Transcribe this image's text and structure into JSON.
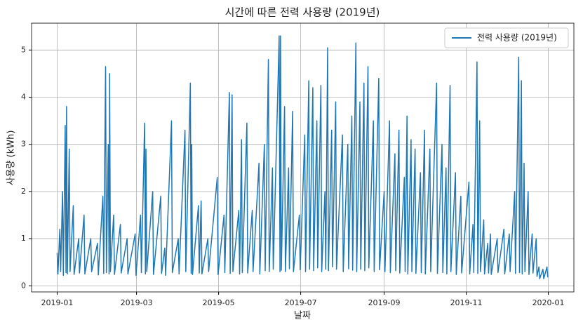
{
  "chart_data": {
    "type": "line",
    "title": "시간에 따른 전력 사용량 (2019년)",
    "x_label": "날짜",
    "y_label": "사용량 (kWh)",
    "x": [
      0,
      0.6,
      2,
      2.6,
      4,
      4.6,
      6,
      6.6,
      7,
      7.6,
      9,
      9.6,
      12,
      12.6,
      16,
      16.6,
      20,
      20.6,
      25,
      25.6,
      30,
      30.6,
      34,
      34.6,
      36,
      36.6,
      38,
      38.6,
      39,
      39.6,
      42,
      42.6,
      47,
      47.6,
      52,
      52.6,
      58,
      58.6,
      62,
      62.6,
      65,
      65.6,
      66,
      66.6,
      71,
      71.6,
      77,
      77.6,
      80,
      80.6,
      85,
      85.6,
      90,
      90.6,
      95,
      95.6,
      99,
      99.6,
      100,
      100.6,
      105,
      105.6,
      107,
      107.6,
      112,
      112.6,
      119,
      119.6,
      124,
      124.6,
      128,
      128.6,
      130,
      130.6,
      135,
      135.6,
      137,
      137.6,
      141,
      141.6,
      145,
      145.6,
      150,
      150.6,
      154,
      154.6,
      157,
      157.6,
      160,
      160.6,
      165,
      165.6,
      166,
      166.6,
      169,
      169.6,
      172,
      172.6,
      175,
      175.6,
      180,
      180.6,
      184,
      184.6,
      187,
      187.6,
      190,
      190.6,
      193,
      193.6,
      196,
      196.6,
      199,
      199.6,
      201,
      201.6,
      204,
      204.6,
      207,
      207.6,
      212,
      212.6,
      216,
      216.6,
      219,
      219.6,
      222,
      222.6,
      225,
      225.6,
      228,
      228.6,
      231,
      231.6,
      235,
      235.6,
      239,
      239.6,
      243,
      243.6,
      247,
      247.6,
      251,
      251.6,
      254,
      254.6,
      258,
      258.6,
      260,
      260.6,
      263,
      263.6,
      266,
      266.6,
      270,
      270.6,
      273,
      273.6,
      277,
      277.6,
      282,
      282.6,
      286,
      286.6,
      289,
      289.6,
      292,
      292.6,
      296,
      296.6,
      300,
      300.6,
      306,
      306.6,
      309,
      309.6,
      312,
      312.6,
      314,
      314.6,
      317,
      317.6,
      320,
      320.6,
      322,
      322.6,
      327,
      327.6,
      332,
      332.6,
      336,
      336.6,
      340,
      340.6,
      343,
      343.6,
      345,
      345.6,
      347,
      347.6,
      350,
      350.6,
      353,
      353.6,
      356,
      356.6,
      358,
      358.6,
      361,
      361.6,
      364,
      364.6
    ],
    "series": [
      {
        "name": "전력 사용량 (2019년)",
        "color": "#1f77b4",
        "values": [
          0.7,
          0.25,
          1.2,
          0.3,
          2.0,
          0.22,
          3.4,
          0.28,
          3.8,
          0.25,
          2.9,
          0.3,
          1.7,
          0.24,
          1.0,
          0.27,
          1.5,
          0.25,
          1.0,
          0.3,
          0.9,
          0.23,
          1.9,
          0.26,
          4.65,
          0.28,
          3.0,
          0.25,
          4.5,
          0.3,
          1.5,
          0.24,
          1.3,
          0.27,
          1.0,
          0.25,
          1.1,
          0.22,
          1.5,
          0.28,
          3.45,
          0.25,
          2.9,
          0.3,
          2.0,
          0.24,
          1.9,
          0.26,
          0.8,
          0.22,
          3.5,
          0.28,
          1.0,
          0.25,
          3.3,
          0.3,
          4.3,
          0.26,
          3.0,
          0.24,
          1.7,
          0.27,
          1.8,
          0.25,
          1.0,
          0.3,
          2.3,
          0.24,
          1.5,
          0.28,
          4.1,
          0.26,
          4.05,
          0.3,
          1.6,
          0.25,
          3.1,
          0.28,
          3.45,
          0.27,
          1.6,
          0.3,
          2.6,
          0.25,
          3.0,
          0.32,
          4.8,
          0.3,
          2.5,
          0.35,
          5.3,
          0.3,
          5.3,
          0.33,
          3.8,
          0.3,
          2.5,
          0.36,
          3.7,
          0.3,
          1.5,
          0.34,
          3.2,
          0.3,
          4.35,
          0.35,
          4.2,
          0.32,
          3.5,
          0.38,
          4.25,
          0.3,
          2.0,
          0.35,
          5.05,
          0.32,
          3.3,
          0.4,
          3.9,
          0.35,
          3.2,
          0.3,
          3.0,
          0.36,
          3.6,
          0.33,
          5.15,
          0.3,
          3.9,
          0.35,
          4.3,
          0.32,
          4.65,
          0.38,
          3.5,
          0.3,
          4.4,
          0.34,
          2.0,
          0.3,
          3.5,
          0.28,
          2.8,
          0.32,
          3.3,
          0.27,
          2.3,
          0.3,
          3.6,
          0.25,
          3.1,
          0.3,
          2.9,
          0.26,
          2.4,
          0.28,
          3.3,
          0.25,
          2.9,
          0.3,
          4.3,
          0.26,
          3.0,
          0.28,
          2.5,
          0.25,
          4.25,
          0.3,
          2.4,
          0.24,
          1.9,
          0.27,
          2.2,
          0.25,
          1.3,
          0.28,
          4.75,
          0.26,
          3.5,
          0.3,
          1.4,
          0.25,
          0.9,
          0.27,
          1.1,
          0.24,
          1.0,
          0.28,
          1.2,
          0.25,
          1.1,
          0.3,
          2.0,
          0.26,
          4.85,
          0.28,
          4.35,
          0.25,
          2.6,
          0.3,
          2.0,
          0.24,
          1.1,
          0.27,
          1.0,
          0.2,
          0.4,
          0.15,
          0.35,
          0.15,
          0.4,
          0.18
        ]
      }
    ],
    "xlim": [
      -19,
      384
    ],
    "xticks": [
      {
        "value": 0,
        "label": "2019-01"
      },
      {
        "value": 59,
        "label": "2019-03"
      },
      {
        "value": 120,
        "label": "2019-05"
      },
      {
        "value": 181,
        "label": "2019-07"
      },
      {
        "value": 243,
        "label": "2019-09"
      },
      {
        "value": 304,
        "label": "2019-11"
      },
      {
        "value": 365,
        "label": "2020-01"
      }
    ],
    "ylim": [
      -0.13,
      5.57
    ],
    "yticks": [
      0,
      1,
      2,
      3,
      4,
      5
    ],
    "grid": true,
    "legend": "upper right"
  }
}
